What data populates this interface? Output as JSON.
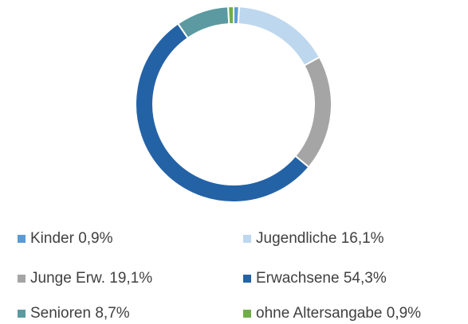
{
  "chart_data": {
    "type": "donut",
    "categories": [
      "Kinder",
      "Jugendliche",
      "Junge Erw.",
      "Erwachsene",
      "Senioren",
      "ohne Altersangabe"
    ],
    "values": [
      0.9,
      16.1,
      19.1,
      54.3,
      8.7,
      0.9
    ],
    "value_labels": [
      "0,9%",
      "16,1%",
      "19,1%",
      "54,3%",
      "8,7%",
      "0,9%"
    ],
    "colors": [
      "#5b9bd5",
      "#bdd7ee",
      "#a5a5a5",
      "#2462a6",
      "#5b9aa0",
      "#70ad47"
    ]
  }
}
